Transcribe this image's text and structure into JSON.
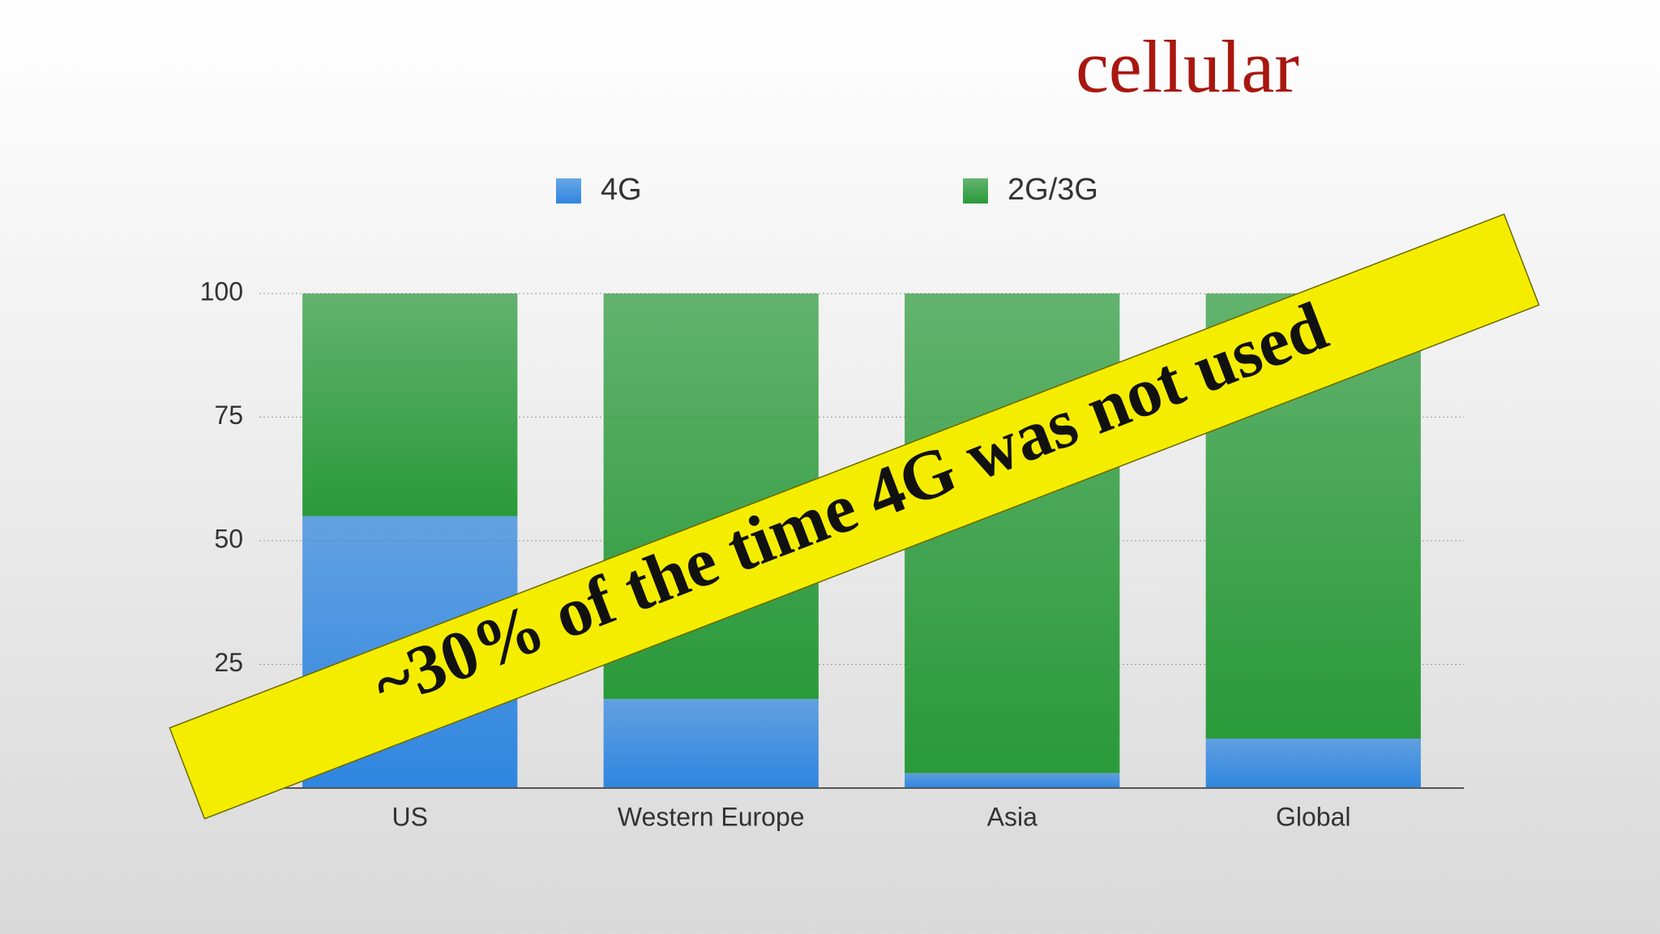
{
  "chart_data": {
    "type": "stacked-bar",
    "title": "cellular",
    "categories": [
      "US",
      "Western Europe",
      "Asia",
      "Global"
    ],
    "series": [
      {
        "name": "4G",
        "color": "#2f86e0",
        "values": [
          55,
          18,
          3,
          10
        ]
      },
      {
        "name": "2G/3G",
        "color": "#2a9a3a",
        "values": [
          45,
          82,
          97,
          90
        ]
      }
    ],
    "ylim": [
      0,
      100
    ],
    "yticks": [
      25,
      50,
      75,
      100
    ],
    "grid": true,
    "annotation": "~30% of the time 4G was not used"
  }
}
